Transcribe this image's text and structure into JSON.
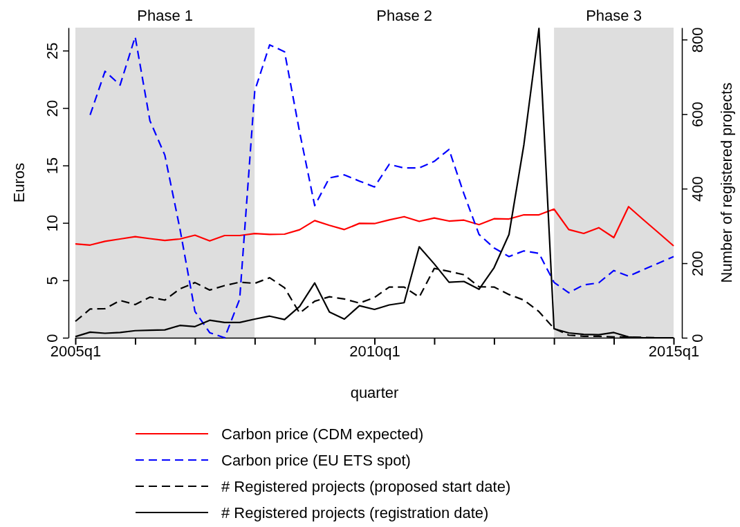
{
  "chart_data": {
    "type": "line",
    "xlabel": "quarter",
    "ylabel": "Euros",
    "y2label": "Number of registered projects",
    "x": [
      "2005-01",
      "2005-04",
      "2005-07",
      "2005-10",
      "2006-01",
      "2006-04",
      "2006-07",
      "2006-10",
      "2007-01",
      "2007-04",
      "2007-07",
      "2007-10",
      "2008-01",
      "2008-04",
      "2008-07",
      "2008-10",
      "2009-01",
      "2009-04",
      "2009-07",
      "2009-10",
      "2010-01",
      "2010-04",
      "2010-07",
      "2010-10",
      "2011-01",
      "2011-04",
      "2011-07",
      "2011-10",
      "2012-01",
      "2012-04",
      "2012-07",
      "2012-10",
      "2013-01",
      "2013-04",
      "2013-07",
      "2013-10",
      "2014-01",
      "2014-04",
      "2014-07",
      "2014-10",
      "2015-01"
    ],
    "xlim": [
      "2005-01",
      "2015-01"
    ],
    "xticks": [
      {
        "value": "2005-01",
        "label": "2005q1"
      },
      {
        "value": "2006-01",
        "label": null
      },
      {
        "value": "2007-01",
        "label": null
      },
      {
        "value": "2008-01",
        "label": null
      },
      {
        "value": "2009-01",
        "label": null
      },
      {
        "value": "2010-01",
        "label": "2010q1"
      },
      {
        "value": "2011-01",
        "label": null
      },
      {
        "value": "2012-01",
        "label": null
      },
      {
        "value": "2013-01",
        "label": null
      },
      {
        "value": "2014-01",
        "label": null
      },
      {
        "value": "2015-01",
        "label": "2015q1"
      }
    ],
    "ylim": [
      0,
      27
    ],
    "yticks": [
      0,
      5,
      10,
      15,
      20,
      25
    ],
    "y2lim": [
      0,
      832
    ],
    "y2ticks": [
      0,
      200,
      400,
      600,
      800
    ],
    "grid": false,
    "legend": "bottom",
    "bands": [
      {
        "axis": "x",
        "from": "2005-01",
        "to": "2008-01",
        "label": "Phase 1",
        "color": "#dedede"
      },
      {
        "axis": "x",
        "from": "2008-01",
        "to": "2013-01",
        "label": "Phase 2",
        "color": "#ffffff"
      },
      {
        "axis": "x",
        "from": "2013-01",
        "to": "2015-01",
        "label": "Phase 3",
        "color": "#dedede"
      }
    ],
    "series": [
      {
        "name": "Carbon price (CDM expected)",
        "color": "#ff0000",
        "line_style": "solid",
        "values": [
          8.17,
          8.07,
          8.4,
          8.6,
          8.8,
          8.63,
          8.47,
          8.6,
          8.93,
          8.43,
          8.9,
          8.9,
          9.07,
          9.0,
          9.02,
          9.4,
          10.2,
          9.79,
          9.42,
          9.96,
          9.94,
          10.26,
          10.54,
          10.13,
          10.43,
          10.16,
          10.24,
          9.85,
          10.36,
          10.34,
          10.7,
          10.7,
          11.2,
          9.42,
          9.08,
          9.58,
          8.72,
          11.41,
          10.27,
          9.14,
          8.0
        ]
      },
      {
        "name": "Carbon price (EU ETS spot)",
        "color": "#0000ff",
        "line_style": "dashed",
        "values": [
          null,
          19.4,
          23.2,
          22.0,
          26.2,
          18.9,
          15.9,
          9.5,
          2.3,
          0.44,
          0.0,
          3.36,
          21.5,
          25.5,
          24.9,
          17.9,
          11.5,
          13.92,
          14.18,
          13.64,
          13.13,
          15.1,
          14.78,
          14.78,
          15.36,
          16.39,
          12.53,
          9.0,
          7.82,
          7.07,
          7.56,
          7.35,
          4.82,
          3.92,
          4.6,
          4.78,
          5.85,
          5.36,
          5.93,
          6.5,
          7.07
        ]
      },
      {
        "name": "# Registered projects (proposed start date)",
        "color": "#000000",
        "line_style": "dashed",
        "axis": "y2",
        "values": [
          44,
          77,
          78,
          100,
          89,
          109,
          101,
          131,
          148,
          128,
          140,
          149,
          146,
          161,
          134,
          66,
          98,
          110,
          104,
          93,
          108,
          136,
          136,
          109,
          186,
          178,
          169,
          137,
          136,
          116,
          101,
          70,
          25,
          7,
          4,
          4,
          2,
          2,
          1,
          0,
          0
        ]
      },
      {
        "name": "# Registered projects (registration date)",
        "color": "#000000",
        "line_style": "solid",
        "axis": "y2",
        "values": [
          3,
          15,
          12,
          14,
          19,
          20,
          21,
          33,
          30,
          47,
          41,
          41,
          50,
          58,
          49,
          84,
          147,
          69,
          50,
          86,
          76,
          88,
          94,
          244,
          198,
          149,
          151,
          130,
          188,
          277,
          518,
          830,
          24,
          13,
          9,
          8,
          14,
          2,
          0,
          0,
          0
        ]
      }
    ]
  }
}
